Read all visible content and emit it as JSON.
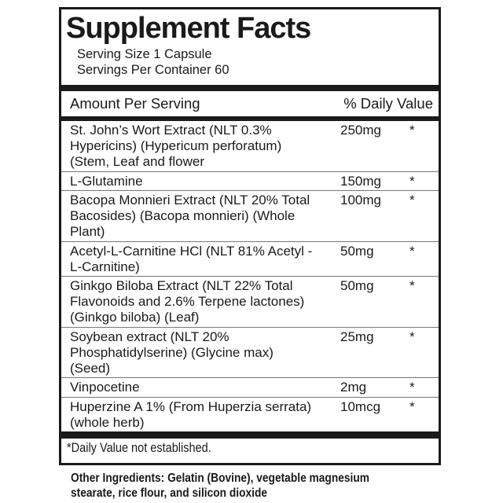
{
  "panel": {
    "title": "Supplement Facts",
    "serving_size": "Serving Size 1 Capsule",
    "servings_per_container": "Servings Per Container 60",
    "column_headers": {
      "amount": "Amount Per Serving",
      "daily_value": "% Daily Value"
    },
    "ingredients": [
      {
        "name": "St. John’s Wort Extract (NLT 0.3% Hypericins) (Hypericum perforatum) (Stem, Leaf and flower",
        "amount": "250mg",
        "daily_value": "*"
      },
      {
        "name": "L-Glutamine",
        "amount": "150mg",
        "daily_value": "*"
      },
      {
        "name": "Bacopa Monnieri Extract (NLT 20% Total Bacosides) (Bacopa monnieri) (Whole Plant)",
        "amount": "100mg",
        "daily_value": "*"
      },
      {
        "name": "Acetyl-L-Carnitine HCl (NLT 81% Acetyl -L-Carnitine)",
        "amount": "50mg",
        "daily_value": "*"
      },
      {
        "name": "Ginkgo Biloba Extract (NLT 22% Total Flavonoids and 2.6% Terpene lactones) (Ginkgo biloba) (Leaf)",
        "amount": "50mg",
        "daily_value": "*"
      },
      {
        "name": "Soybean extract (NLT 20% Phosphatidylserine) (Glycine max) (Seed)",
        "amount": "25mg",
        "daily_value": "*"
      },
      {
        "name": "Vinpocetine",
        "amount": "2mg",
        "daily_value": "*"
      },
      {
        "name": "Huperzine A 1% (From Huperzia serrata) (whole herb)",
        "amount": "10mcg",
        "daily_value": "*"
      }
    ],
    "footnote": "*Daily Value not established."
  },
  "other_ingredients": {
    "text": "Other Ingredients: Gelatin (Bovine), vegetable magnesium stearate, rice flour, and silicon dioxide"
  },
  "colors": {
    "background": "#ffffff",
    "text": "#1a1a1a",
    "border": "#1a1a1a",
    "bar": "#1a1a1a",
    "divider": "#777777"
  }
}
